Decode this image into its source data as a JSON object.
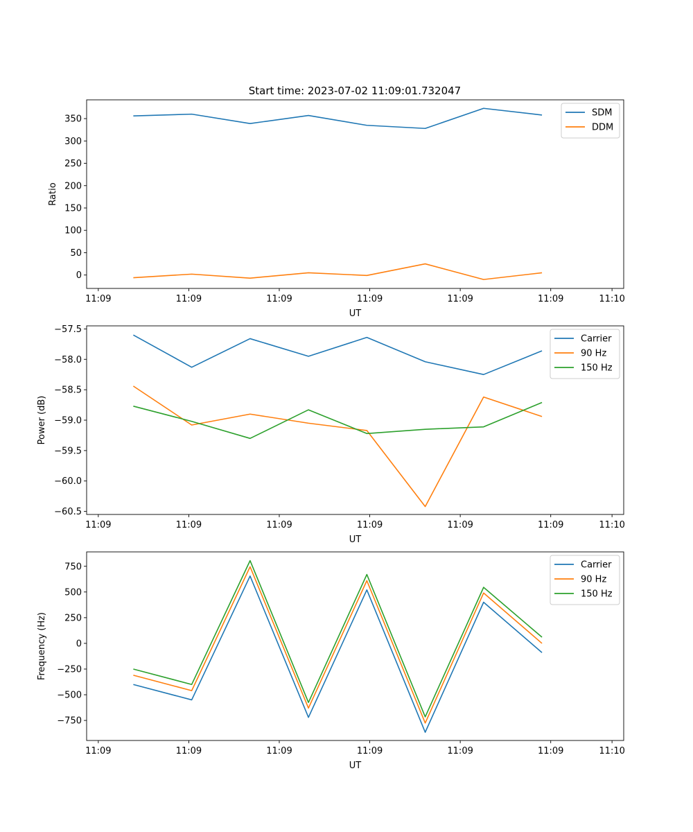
{
  "figure_title": "Start time: 2023-07-02 11:09:01.732047",
  "colors": {
    "blue": "#1f77b4",
    "orange": "#ff7f0e",
    "green": "#2ca02c"
  },
  "chart_data": [
    {
      "type": "line",
      "title": "Start time: 2023-07-02 11:09:01.732047",
      "xlabel": "UT",
      "ylabel": "Ratio",
      "x": [
        1,
        2,
        3,
        4,
        5,
        6,
        7,
        8
      ],
      "xlim": [
        0.2,
        9.4
      ],
      "xticks": [
        0.4,
        1.95,
        3.5,
        5.05,
        6.6,
        8.15,
        9.2
      ],
      "xtick_labels": [
        "11:09",
        "11:09",
        "11:09",
        "11:09",
        "11:09",
        "11:09",
        "11:10"
      ],
      "ylim": [
        -30,
        392
      ],
      "yticks": [
        0,
        50,
        100,
        150,
        200,
        250,
        300,
        350
      ],
      "ytick_labels": [
        "0",
        "50",
        "100",
        "150",
        "200",
        "250",
        "300",
        "350"
      ],
      "legend_position": "top-right",
      "series": [
        {
          "name": "SDM",
          "color": "#1f77b4",
          "values": [
            356,
            360,
            339,
            357,
            335,
            328,
            373,
            358
          ]
        },
        {
          "name": "DDM",
          "color": "#ff7f0e",
          "values": [
            -6,
            2,
            -7,
            5,
            -1,
            25,
            -10,
            5
          ]
        }
      ]
    },
    {
      "type": "line",
      "title": "",
      "xlabel": "UT",
      "ylabel": "Power (dB)",
      "x": [
        1,
        2,
        3,
        4,
        5,
        6,
        7,
        8
      ],
      "xlim": [
        0.2,
        9.4
      ],
      "xticks": [
        0.4,
        1.95,
        3.5,
        5.05,
        6.6,
        8.15,
        9.2
      ],
      "xtick_labels": [
        "11:09",
        "11:09",
        "11:09",
        "11:09",
        "11:09",
        "11:09",
        "11:10"
      ],
      "ylim": [
        -60.55,
        -57.45
      ],
      "yticks": [
        -60.5,
        -60.0,
        -59.5,
        -59.0,
        -58.5,
        -58.0,
        -57.5
      ],
      "ytick_labels": [
        "−60.5",
        "−60.0",
        "−59.5",
        "−59.0",
        "−58.5",
        "−58.0",
        "−57.5"
      ],
      "legend_position": "top-right",
      "series": [
        {
          "name": "Carrier",
          "color": "#1f77b4",
          "values": [
            -57.6,
            -58.13,
            -57.66,
            -57.95,
            -57.64,
            -58.04,
            -58.25,
            -57.86
          ]
        },
        {
          "name": "90 Hz",
          "color": "#ff7f0e",
          "values": [
            -58.44,
            -59.08,
            -58.9,
            -59.05,
            -59.17,
            -60.42,
            -58.62,
            -58.94
          ]
        },
        {
          "name": "150 Hz",
          "color": "#2ca02c",
          "values": [
            -58.77,
            -59.02,
            -59.3,
            -58.83,
            -59.22,
            -59.15,
            -59.11,
            -58.71
          ]
        }
      ]
    },
    {
      "type": "line",
      "title": "",
      "xlabel": "UT",
      "ylabel": "Frequency (Hz)",
      "x": [
        1,
        2,
        3,
        4,
        5,
        6,
        7,
        8
      ],
      "xlim": [
        0.2,
        9.4
      ],
      "xticks": [
        0.4,
        1.95,
        3.5,
        5.05,
        6.6,
        8.15,
        9.2
      ],
      "xtick_labels": [
        "11:09",
        "11:09",
        "11:09",
        "11:09",
        "11:09",
        "11:09",
        "11:10"
      ],
      "ylim": [
        -945,
        890
      ],
      "yticks": [
        -750,
        -500,
        -250,
        0,
        250,
        500,
        750
      ],
      "ytick_labels": [
        "−750",
        "−500",
        "−250",
        "0",
        "250",
        "500",
        "750"
      ],
      "legend_position": "top-right",
      "series": [
        {
          "name": "Carrier",
          "color": "#1f77b4",
          "values": [
            -400,
            -550,
            655,
            -720,
            520,
            -865,
            400,
            -90
          ]
        },
        {
          "name": "90 Hz",
          "color": "#ff7f0e",
          "values": [
            -310,
            -460,
            745,
            -630,
            610,
            -775,
            490,
            0
          ]
        },
        {
          "name": "150 Hz",
          "color": "#2ca02c",
          "values": [
            -250,
            -400,
            805,
            -575,
            670,
            -715,
            545,
            60
          ]
        }
      ]
    }
  ]
}
